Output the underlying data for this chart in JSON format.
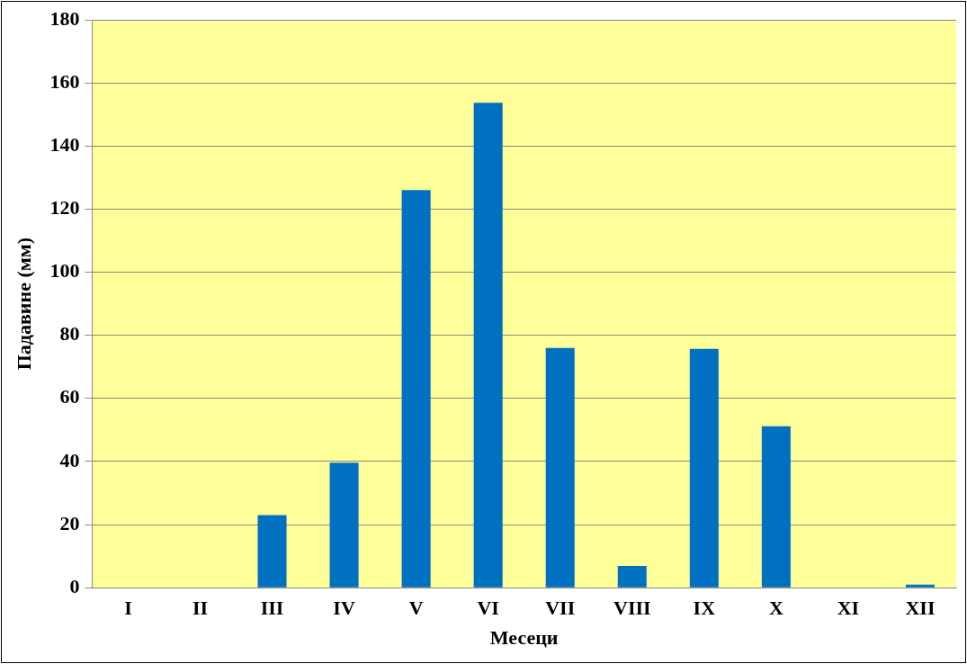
{
  "chart_data": {
    "type": "bar",
    "xlabel": "Месеци",
    "ylabel": "Падавине (мм)",
    "categories": [
      "I",
      "II",
      "III",
      "IV",
      "V",
      "VI",
      "VII",
      "VIII",
      "IX",
      "X",
      "XI",
      "XII"
    ],
    "values": [
      0,
      0,
      23,
      39.6,
      126,
      153.7,
      76,
      6.9,
      75.7,
      51.2,
      0,
      1
    ],
    "color": "#0070c0",
    "ylim": [
      0,
      180
    ],
    "yticks": [
      0,
      20,
      40,
      60,
      80,
      100,
      120,
      140,
      160,
      180
    ],
    "grid": "y",
    "legend": false
  }
}
